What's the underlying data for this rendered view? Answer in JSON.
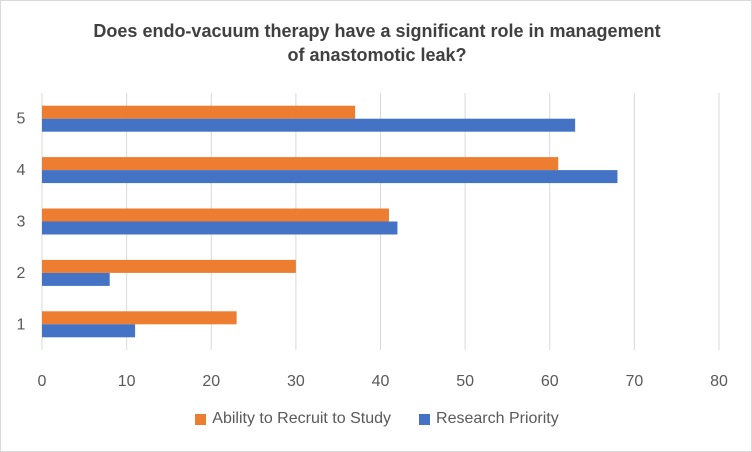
{
  "chart_data": {
    "type": "bar",
    "orientation": "horizontal",
    "title_lines": [
      "Does endo-vacuum therapy have a significant role in management",
      "of anastomotic  leak?"
    ],
    "categories": [
      "1",
      "2",
      "3",
      "4",
      "5"
    ],
    "series": [
      {
        "name": "Ability to Recruit to Study",
        "color": "#ED7D31",
        "values": [
          23,
          30,
          41,
          61,
          37
        ]
      },
      {
        "name": "Research Priority",
        "color": "#4472C4",
        "values": [
          11,
          8,
          42,
          68,
          63
        ]
      }
    ],
    "xlim": [
      0,
      80
    ],
    "xticks": [
      0,
      10,
      20,
      30,
      40,
      50,
      60,
      70,
      80
    ],
    "grid": true,
    "legend_position": "bottom"
  }
}
